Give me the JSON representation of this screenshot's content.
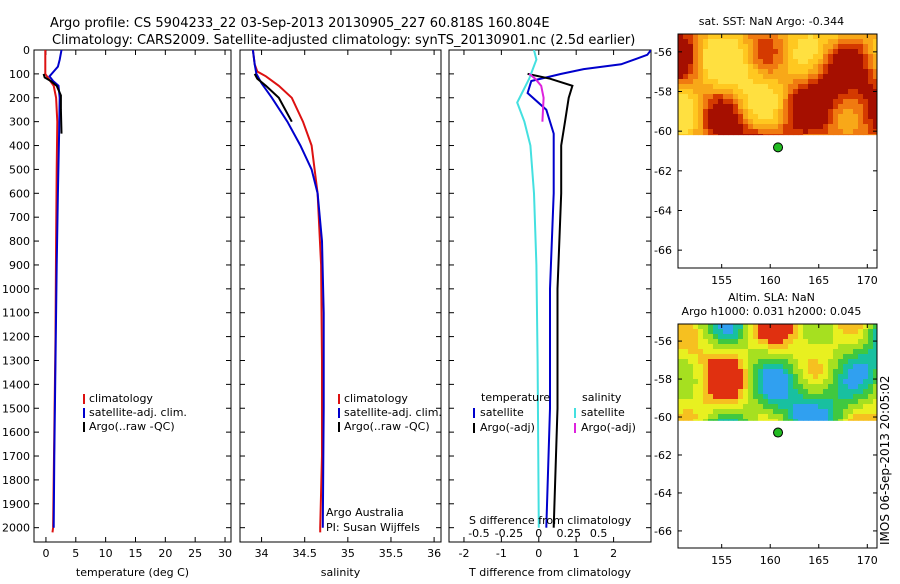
{
  "header": {
    "line1": "Argo profile: CS 5904233_22 03-Sep-2013 20130905_227 60.818S 160.804E",
    "line2": "Climatology: CARS2009. Satellite-adjusted climatology: synTS_20130901.nc (2.5d earlier)"
  },
  "footer_stamp": "IMOS 06-Sep-2013 20:05:02",
  "colors": {
    "climatology": "#dd1111",
    "satellite": "#0000cc",
    "argo": "#000000",
    "sal_satellite": "#44e0e0",
    "sal_argo": "#dd22dd",
    "float_marker": "#22bb22"
  },
  "chart_data": [
    {
      "id": "temperature",
      "type": "line",
      "xlabel": "temperature (deg C)",
      "ylabel": "",
      "xlim": [
        -2,
        31
      ],
      "ylim": [
        2060,
        0
      ],
      "xticks": [
        0,
        5,
        10,
        15,
        20,
        25,
        30
      ],
      "yticks": [
        0,
        100,
        200,
        300,
        400,
        500,
        600,
        700,
        800,
        900,
        1000,
        1100,
        1200,
        1300,
        1400,
        1500,
        1600,
        1700,
        1800,
        1900,
        2000
      ],
      "legend": [
        "climatology",
        "satellite-adj. clim.",
        "Argo(..raw -QC)"
      ],
      "series": [
        {
          "name": "climatology",
          "color": "#dd1111",
          "points": [
            [
              -0.1,
              0
            ],
            [
              -0.1,
              50
            ],
            [
              -0.1,
              100
            ],
            [
              0.6,
              125
            ],
            [
              1.3,
              150
            ],
            [
              1.7,
              200
            ],
            [
              1.9,
              300
            ],
            [
              1.8,
              500
            ],
            [
              1.7,
              800
            ],
            [
              1.6,
              1200
            ],
            [
              1.4,
              1600
            ],
            [
              1.2,
              2000
            ],
            [
              1.1,
              2020
            ]
          ]
        },
        {
          "name": "satellite-adj. clim.",
          "color": "#0000cc",
          "points": [
            [
              2.6,
              0
            ],
            [
              2.3,
              40
            ],
            [
              2.0,
              70
            ],
            [
              1.3,
              90
            ],
            [
              0.6,
              110
            ],
            [
              1.2,
              130
            ],
            [
              2.1,
              150
            ],
            [
              2.3,
              200
            ],
            [
              2.2,
              350
            ],
            [
              2.0,
              600
            ],
            [
              1.8,
              900
            ],
            [
              1.6,
              1300
            ],
            [
              1.4,
              1700
            ],
            [
              1.3,
              2000
            ]
          ]
        },
        {
          "name": "Argo(..raw -QC)",
          "color": "#000000",
          "points": [
            [
              -0.4,
              100
            ],
            [
              -0.2,
              115
            ],
            [
              0.8,
              130
            ],
            [
              1.8,
              150
            ],
            [
              2.5,
              190
            ],
            [
              2.5,
              250
            ],
            [
              2.6,
              350
            ]
          ]
        }
      ]
    },
    {
      "id": "salinity",
      "type": "line",
      "xlabel": "salinity",
      "ylabel": "",
      "xlim": [
        33.75,
        36.08
      ],
      "ylim": [
        2060,
        0
      ],
      "xticks": [
        34,
        34.5,
        35,
        35.5,
        36
      ],
      "xticklabels": [
        "34",
        "34.5",
        "35",
        "35.5",
        "36"
      ],
      "legend": [
        "climatology",
        "satellite-adj. clim.",
        "Argo(..raw -QC)"
      ],
      "annotations": [
        "Argo Australia",
        "PI: Susan Wijffels"
      ],
      "series": [
        {
          "name": "climatology",
          "color": "#dd1111",
          "points": [
            [
              33.9,
              0
            ],
            [
              33.92,
              60
            ],
            [
              33.95,
              90
            ],
            [
              34.05,
              110
            ],
            [
              34.2,
              150
            ],
            [
              34.35,
              200
            ],
            [
              34.48,
              300
            ],
            [
              34.58,
              400
            ],
            [
              34.65,
              600
            ],
            [
              34.69,
              900
            ],
            [
              34.7,
              1300
            ],
            [
              34.7,
              1700
            ],
            [
              34.68,
              2000
            ],
            [
              34.68,
              2020
            ]
          ]
        },
        {
          "name": "satellite-adj. clim.",
          "color": "#0000cc",
          "points": [
            [
              33.9,
              0
            ],
            [
              33.92,
              60
            ],
            [
              33.94,
              100
            ],
            [
              34.0,
              140
            ],
            [
              34.12,
              200
            ],
            [
              34.3,
              300
            ],
            [
              34.45,
              400
            ],
            [
              34.58,
              500
            ],
            [
              34.65,
              600
            ],
            [
              34.7,
              800
            ],
            [
              34.72,
              1100
            ],
            [
              34.72,
              1500
            ],
            [
              34.71,
              2000
            ]
          ]
        },
        {
          "name": "Argo(..raw -QC)",
          "color": "#000000",
          "points": [
            [
              33.92,
              100
            ],
            [
              33.95,
              120
            ],
            [
              34.05,
              150
            ],
            [
              34.2,
              200
            ],
            [
              34.35,
              300
            ]
          ]
        }
      ]
    },
    {
      "id": "difference",
      "type": "line",
      "xlabel": "T difference from climatology",
      "xlabel_top": "S difference from climatology",
      "xlim": [
        -2.4,
        3.0
      ],
      "ylim": [
        2060,
        0
      ],
      "xticks": [
        -2,
        -1,
        0,
        1,
        2
      ],
      "sticks": [
        -0.5,
        -0.25,
        0,
        0.25,
        0.5
      ],
      "sticklabels": [
        "-0.5",
        "-0.25",
        "0",
        "0.25",
        "0.5"
      ],
      "legend_left_title": "temperature",
      "legend_right_title": "salinity",
      "legend": [
        "satellite",
        "Argo(-adj)",
        "satellite",
        "Argo(-adj)"
      ],
      "series": [
        {
          "name": "satellite",
          "group": "temperature",
          "color": "#0000cc",
          "points": [
            [
              3.0,
              0
            ],
            [
              2.9,
              20
            ],
            [
              2.2,
              60
            ],
            [
              1.2,
              80
            ],
            [
              0.6,
              100
            ],
            [
              -0.2,
              130
            ],
            [
              -0.3,
              180
            ],
            [
              0.2,
              250
            ],
            [
              0.4,
              350
            ],
            [
              0.4,
              600
            ],
            [
              0.3,
              1000
            ],
            [
              0.3,
              1500
            ],
            [
              0.2,
              2000
            ]
          ]
        },
        {
          "name": "Argo(-adj)",
          "group": "temperature",
          "color": "#000000",
          "points": [
            [
              -0.3,
              100
            ],
            [
              0.3,
              120
            ],
            [
              0.9,
              150
            ],
            [
              0.8,
              200
            ],
            [
              0.7,
              300
            ],
            [
              0.6,
              400
            ],
            [
              0.6,
              600
            ],
            [
              0.5,
              1000
            ],
            [
              0.5,
              1500
            ],
            [
              0.4,
              2000
            ]
          ]
        },
        {
          "name": "satellite",
          "group": "salinity",
          "color": "#44e0e0",
          "points": [
            [
              -0.04,
              0
            ],
            [
              -0.02,
              40
            ],
            [
              -0.05,
              80
            ],
            [
              -0.08,
              120
            ],
            [
              -0.14,
              180
            ],
            [
              -0.18,
              220
            ],
            [
              -0.12,
              300
            ],
            [
              -0.07,
              400
            ],
            [
              -0.04,
              600
            ],
            [
              -0.02,
              900
            ],
            [
              -0.01,
              1300
            ],
            [
              0.0,
              2000
            ]
          ]
        },
        {
          "name": "Argo(-adj)",
          "group": "salinity",
          "color": "#dd22dd",
          "points": [
            [
              -0.08,
              100
            ],
            [
              -0.03,
              120
            ],
            [
              0.02,
              150
            ],
            [
              0.04,
              200
            ],
            [
              0.03,
              300
            ]
          ]
        }
      ]
    },
    {
      "id": "sst_map",
      "type": "heatmap",
      "title": "sat. SST: NaN Argo: -0.344",
      "xlim": [
        150.5,
        171
      ],
      "ylim": [
        -66.9,
        -55.1
      ],
      "xticks": [
        155,
        160,
        165,
        170
      ],
      "yticks": [
        -56,
        -58,
        -60,
        -62,
        -64,
        -66
      ],
      "data_lat_range": [
        -55.1,
        -60.2
      ],
      "marker": {
        "lon": 160.804,
        "lat": -60.818
      }
    },
    {
      "id": "sla_map",
      "type": "heatmap",
      "title": "Altim. SLA: NaN",
      "subtitle": "Argo h1000: 0.031 h2000: 0.045",
      "xlim": [
        150.5,
        171
      ],
      "ylim": [
        -66.9,
        -55.1
      ],
      "xticks": [
        155,
        160,
        165,
        170
      ],
      "yticks": [
        -56,
        -58,
        -60,
        -62,
        -64,
        -66
      ],
      "data_lat_range": [
        -55.1,
        -60.2
      ],
      "marker": {
        "lon": 160.804,
        "lat": -60.818
      }
    }
  ]
}
